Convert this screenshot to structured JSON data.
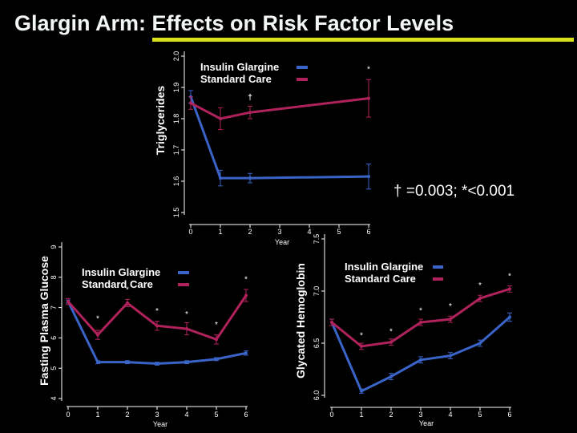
{
  "title": "Glargin Arm: Effects on Risk Factor Levels",
  "colors": {
    "background": "#000000",
    "title_rule": "#d9e01c",
    "glargine": "#3a64c8",
    "standard": "#b0225c",
    "text": "#ffffff"
  },
  "footnote": "† =0.003; *<0.001",
  "chart_data": [
    {
      "type": "line",
      "ylabel": "Triglycerides",
      "xlabel": "Year",
      "x": [
        0,
        1,
        2,
        6
      ],
      "xticks": [
        "0",
        "1",
        "2",
        "3",
        "4",
        "5",
        "6"
      ],
      "xlim": [
        0,
        6
      ],
      "yticks": [
        "1.5",
        "1.6",
        "1.7",
        "1.8",
        "1.9",
        "2.0"
      ],
      "ylim": [
        1.5,
        2.0
      ],
      "legend_pos": "top-center",
      "legend": {
        "glargine": "Insulin Glargine",
        "standard": "Standard Care"
      },
      "series": [
        {
          "name": "Insulin Glargine",
          "key": "glargine",
          "values": [
            1.87,
            1.61,
            1.61,
            1.615
          ],
          "err": [
            0.02,
            0.025,
            0.015,
            0.04
          ]
        },
        {
          "name": "Standard Care",
          "key": "standard",
          "values": [
            1.85,
            1.8,
            1.82,
            1.865
          ],
          "err": [
            0.02,
            0.035,
            0.02,
            0.06
          ]
        }
      ],
      "annotations": [
        {
          "text": "†",
          "x": 2,
          "y": 1.86
        },
        {
          "text": "*",
          "x": 6,
          "y": 1.95
        }
      ]
    },
    {
      "type": "line",
      "ylabel": "Fasting Plasma Glucose",
      "xlabel": "Year",
      "x": [
        0,
        1,
        2,
        3,
        4,
        5,
        6
      ],
      "xticks": [
        "0",
        "1",
        "2",
        "3",
        "4",
        "5",
        "6"
      ],
      "xlim": [
        0,
        6
      ],
      "yticks": [
        "4",
        "5",
        "6",
        "7",
        "8",
        "9"
      ],
      "ylim": [
        4,
        9
      ],
      "legend_pos": "top-center",
      "legend": {
        "glargine": "Insulin Glargine",
        "standard": "Standard Care"
      },
      "series": [
        {
          "name": "Insulin Glargine",
          "key": "glargine",
          "values": [
            7.2,
            5.2,
            5.2,
            5.15,
            5.2,
            5.3,
            5.5
          ],
          "err": [
            0.05,
            0.05,
            0.05,
            0.05,
            0.05,
            0.05,
            0.07
          ]
        },
        {
          "name": "Standard Care",
          "key": "standard",
          "values": [
            7.2,
            6.1,
            7.15,
            6.4,
            6.3,
            5.95,
            7.4
          ],
          "err": [
            0.1,
            0.15,
            0.12,
            0.15,
            0.2,
            0.15,
            0.2
          ]
        }
      ],
      "annotations": [
        {
          "text": "*",
          "x": 1,
          "y": 6.55
        },
        {
          "text": "*",
          "x": 2,
          "y": 7.5
        },
        {
          "text": "*",
          "x": 3,
          "y": 6.8
        },
        {
          "text": "*",
          "x": 4,
          "y": 6.7
        },
        {
          "text": "*",
          "x": 5,
          "y": 6.35
        },
        {
          "text": "*",
          "x": 6,
          "y": 7.85
        }
      ]
    },
    {
      "type": "line",
      "ylabel": "Glycated Hemoglobin",
      "xlabel": "Year",
      "x": [
        0,
        1,
        2,
        3,
        4,
        5,
        6
      ],
      "xticks": [
        "0",
        "1",
        "2",
        "3",
        "4",
        "5",
        "6"
      ],
      "xlim": [
        0,
        6
      ],
      "yticks": [
        "6.0",
        "6.5",
        "7.0",
        "7.5"
      ],
      "ylim": [
        6.0,
        7.5
      ],
      "legend_pos": "top-center",
      "legend": {
        "glargine": "Insulin Glargine",
        "standard": "Standard Care"
      },
      "series": [
        {
          "name": "Insulin Glargine",
          "key": "glargine",
          "values": [
            6.7,
            6.04,
            6.18,
            6.34,
            6.38,
            6.5,
            6.75
          ],
          "err": [
            0.03,
            0.02,
            0.03,
            0.03,
            0.03,
            0.03,
            0.04
          ]
        },
        {
          "name": "Standard Care",
          "key": "standard",
          "values": [
            6.7,
            6.47,
            6.51,
            6.7,
            6.73,
            6.93,
            7.02
          ],
          "err": [
            0.03,
            0.03,
            0.03,
            0.03,
            0.03,
            0.03,
            0.03
          ]
        }
      ],
      "annotations": [
        {
          "text": "*",
          "x": 1,
          "y": 6.55
        },
        {
          "text": "*",
          "x": 2,
          "y": 6.59
        },
        {
          "text": "*",
          "x": 3,
          "y": 6.79
        },
        {
          "text": "*",
          "x": 4,
          "y": 6.83
        },
        {
          "text": "*",
          "x": 5,
          "y": 7.03
        },
        {
          "text": "*",
          "x": 6,
          "y": 7.12
        }
      ]
    }
  ]
}
